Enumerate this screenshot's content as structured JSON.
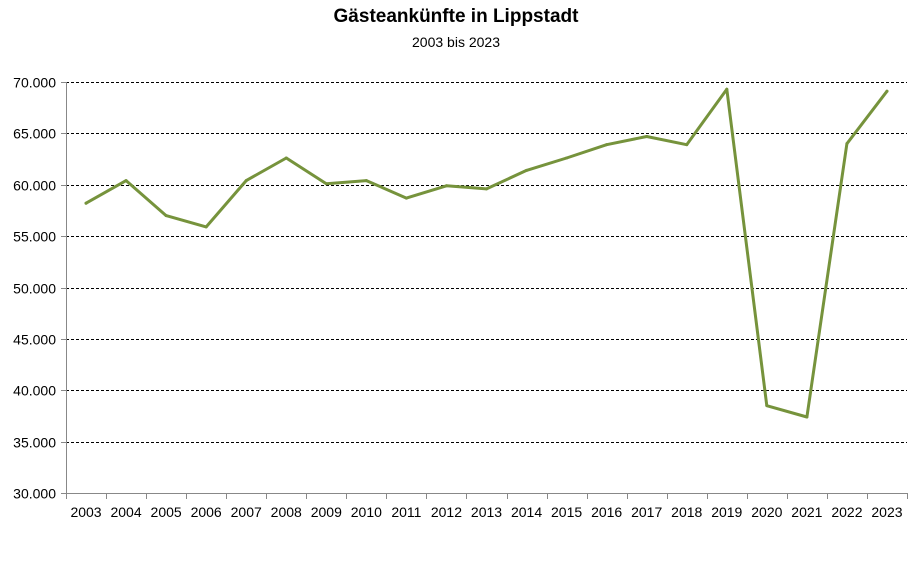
{
  "chart_data": {
    "type": "line",
    "title": "Gästeankünfte in Lippstadt",
    "subtitle": "2003 bis 2023",
    "xlabel": "",
    "ylabel": "",
    "ylim": [
      30000,
      70000
    ],
    "y_ticks": [
      30000,
      35000,
      40000,
      45000,
      50000,
      55000,
      60000,
      65000,
      70000
    ],
    "y_tick_labels": [
      "30.000",
      "35.000",
      "40.000",
      "45.000",
      "50.000",
      "55.000",
      "60.000",
      "65.000",
      "70.000"
    ],
    "grid": "horizontal dashed",
    "legend": "none",
    "line_color": "#76933C",
    "categories": [
      "2003",
      "2004",
      "2005",
      "2006",
      "2007",
      "2008",
      "2009",
      "2010",
      "2011",
      "2012",
      "2013",
      "2014",
      "2015",
      "2016",
      "2017",
      "2018",
      "2019",
      "2020",
      "2021",
      "2022",
      "2023"
    ],
    "series": [
      {
        "values": [
          58200,
          60400,
          57000,
          55900,
          60400,
          62600,
          60100,
          60400,
          58700,
          59900,
          59600,
          61400,
          62600,
          63900,
          64700,
          63900,
          69300,
          38500,
          37400,
          64000,
          69100
        ]
      }
    ]
  }
}
